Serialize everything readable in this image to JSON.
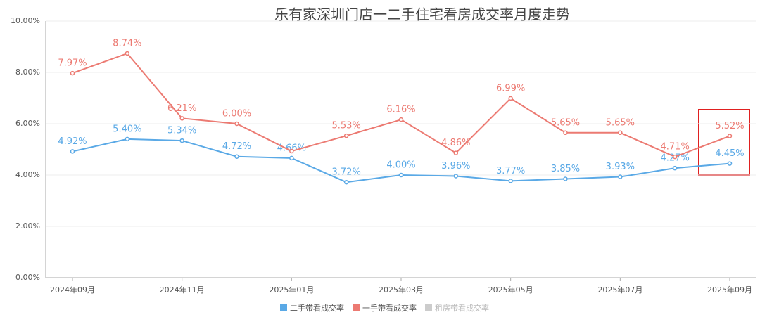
{
  "chart_data": {
    "type": "line",
    "title": "乐有家深圳门店一二手住宅看房成交率月度走势",
    "categories": [
      "2024年09月",
      null,
      "2024年11月",
      null,
      "2025年01月",
      null,
      "2025年03月",
      null,
      "2025年05月",
      null,
      "2025年07月",
      null,
      "2025年09月"
    ],
    "series": [
      {
        "name": "二手带看成交率",
        "color": "#5aa9e6",
        "values": [
          4.92,
          5.4,
          5.34,
          4.72,
          4.66,
          3.72,
          4.0,
          3.96,
          3.77,
          3.85,
          3.93,
          4.27,
          4.45
        ],
        "value_labels": [
          "4.92%",
          "5.40%",
          "5.34%",
          "4.72%",
          "4.66%",
          "3.72%",
          "4.00%",
          "3.96%",
          "3.77%",
          "3.85%",
          "3.93%",
          "4.27%",
          "4.45%"
        ]
      },
      {
        "name": "一手带看成交率",
        "color": "#ec7a72",
        "values": [
          7.97,
          8.74,
          6.21,
          6.0,
          4.93,
          5.53,
          6.16,
          4.86,
          6.99,
          5.65,
          5.65,
          4.71,
          5.52
        ],
        "value_labels": [
          "7.97%",
          "8.74%",
          "6.21%",
          "6.00%",
          null,
          "5.53%",
          "6.16%",
          "4.86%",
          "6.99%",
          "5.65%",
          "5.65%",
          "4.71%",
          "5.52%"
        ]
      },
      {
        "name": "租房带看成交率",
        "color": "#cccccc",
        "values": [
          null,
          null,
          null,
          null,
          null,
          null,
          null,
          null,
          null,
          null,
          null,
          null,
          null
        ]
      }
    ],
    "ylim": [
      0,
      10
    ],
    "yticks": [
      {
        "value": 0,
        "label": "0.00%"
      },
      {
        "value": 2,
        "label": "2.00%"
      },
      {
        "value": 4,
        "label": "4.00%"
      },
      {
        "value": 6,
        "label": "6.00%"
      },
      {
        "value": 8,
        "label": "8.00%"
      },
      {
        "value": 10,
        "label": "10.00%"
      }
    ],
    "grid": true
  }
}
